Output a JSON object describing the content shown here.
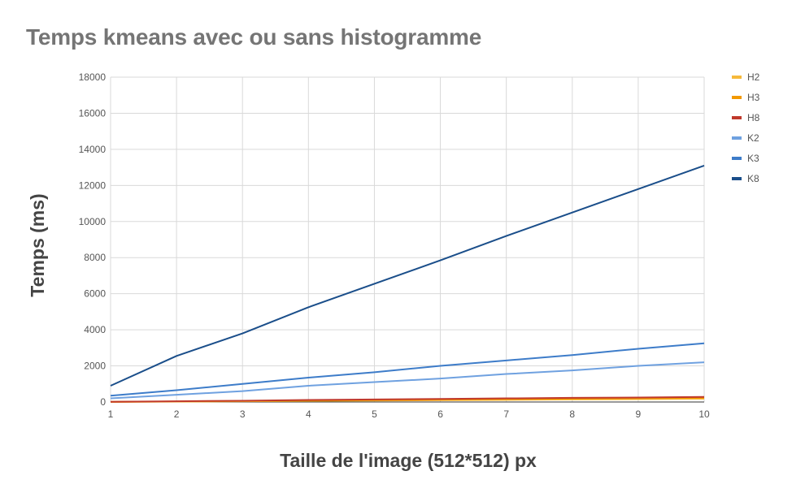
{
  "chart_data": {
    "type": "line",
    "title": "Temps kmeans avec ou sans histogramme",
    "xlabel": "Taille de l'image (512*512) px",
    "ylabel": "Temps (ms)",
    "x": [
      1,
      2,
      3,
      4,
      5,
      6,
      7,
      8,
      9,
      10
    ],
    "xlim": [
      1,
      10
    ],
    "ylim": [
      0,
      18000
    ],
    "yticks": [
      0,
      2000,
      4000,
      6000,
      8000,
      10000,
      12000,
      14000,
      16000,
      18000
    ],
    "grid": true,
    "legend_position": "right",
    "series": [
      {
        "name": "H2",
        "color": "#F6B93B",
        "values": [
          5,
          20,
          40,
          60,
          80,
          100,
          120,
          140,
          160,
          180
        ]
      },
      {
        "name": "H3",
        "color": "#F29900",
        "values": [
          8,
          30,
          55,
          80,
          105,
          130,
          155,
          180,
          205,
          230
        ]
      },
      {
        "name": "H8",
        "color": "#C0392B",
        "values": [
          10,
          40,
          70,
          110,
          140,
          170,
          200,
          230,
          250,
          280
        ]
      },
      {
        "name": "K2",
        "color": "#6FA1E0",
        "values": [
          200,
          400,
          600,
          900,
          1100,
          1300,
          1550,
          1750,
          2000,
          2200
        ]
      },
      {
        "name": "K3",
        "color": "#3D7CC9",
        "values": [
          350,
          650,
          1000,
          1350,
          1650,
          2000,
          2300,
          2600,
          2950,
          3250
        ]
      },
      {
        "name": "K8",
        "color": "#1A4E8A",
        "values": [
          900,
          2550,
          3800,
          5250,
          6550,
          7850,
          9200,
          10500,
          11800,
          13100
        ]
      }
    ]
  }
}
